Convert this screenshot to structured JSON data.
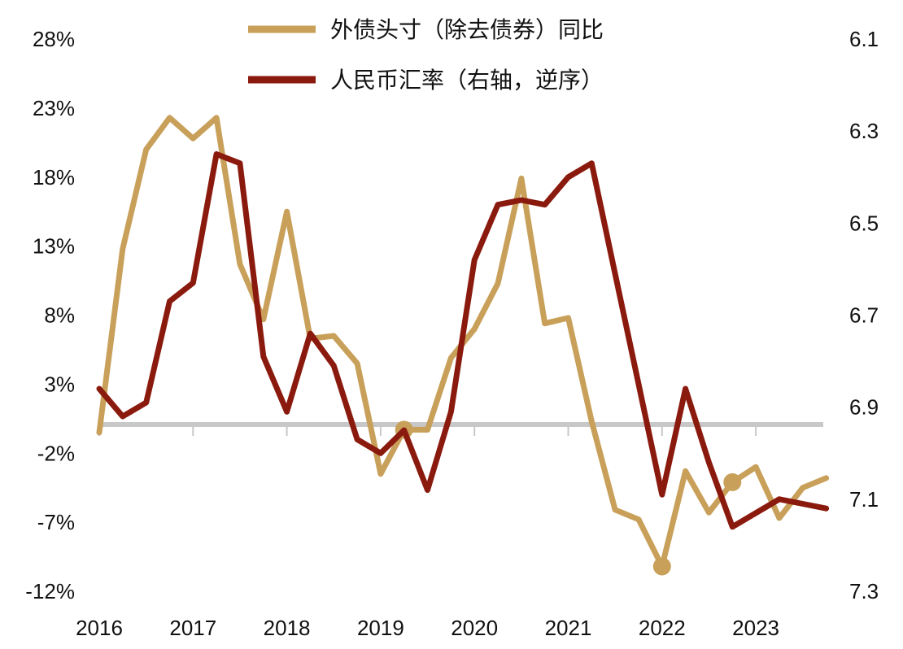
{
  "chart_data": {
    "type": "line",
    "title": "",
    "xlabel": "",
    "ylabel": "",
    "x_ticks": [
      "2016",
      "2017",
      "2018",
      "2019",
      "2020",
      "2021",
      "2022",
      "2023"
    ],
    "y_left": {
      "ticks": [
        "28%",
        "23%",
        "18%",
        "13%",
        "8%",
        "3%",
        "-2%",
        "-7%",
        "-12%"
      ],
      "range": [
        -12,
        28
      ]
    },
    "y_right": {
      "ticks": [
        "6.1",
        "6.3",
        "6.5",
        "6.7",
        "6.9",
        "7.1",
        "7.3"
      ],
      "range": [
        6.1,
        7.3
      ],
      "inverted": true
    },
    "grid": false,
    "legend": {
      "placement": "top-center"
    },
    "series": [
      {
        "name": "外债头寸（除去债券）同比",
        "axis": "left",
        "color": "#C8A05A",
        "x": [
          2016.0,
          2016.25,
          2016.5,
          2016.75,
          2017.0,
          2017.25,
          2017.5,
          2017.75,
          2018.0,
          2018.25,
          2018.5,
          2018.75,
          2019.0,
          2019.25,
          2019.5,
          2019.75,
          2020.0,
          2020.25,
          2020.5,
          2020.75,
          2021.0,
          2021.25,
          2021.5,
          2021.75,
          2022.0,
          2022.25,
          2022.5,
          2022.75,
          2023.0,
          2023.25,
          2023.5,
          2023.75
        ],
        "values": [
          -0.5,
          12.8,
          20.0,
          22.3,
          20.8,
          22.3,
          11.7,
          7.7,
          15.5,
          6.3,
          6.5,
          4.5,
          -3.5,
          -0.3,
          -0.3,
          4.9,
          7.0,
          10.3,
          17.9,
          7.4,
          7.8,
          0.3,
          -6.1,
          -6.8,
          -10.2,
          -3.3,
          -6.3,
          -4.1,
          -3.0,
          -6.7,
          -4.5,
          -3.8
        ],
        "markers_at": [
          2019.25,
          2022.0,
          2022.75
        ]
      },
      {
        "name": "人民币汇率（右轴，逆序）",
        "axis": "right",
        "color": "#8B1A0E",
        "x": [
          2016.0,
          2016.25,
          2016.5,
          2016.75,
          2017.0,
          2017.25,
          2017.5,
          2017.75,
          2018.0,
          2018.25,
          2018.5,
          2018.75,
          2019.0,
          2019.25,
          2019.5,
          2019.75,
          2020.0,
          2020.25,
          2020.5,
          2020.75,
          2021.0,
          2021.25,
          2021.5,
          2021.75,
          2022.0,
          2022.25,
          2022.5,
          2022.75,
          2023.0,
          2023.25,
          2023.5,
          2023.75
        ],
        "values": [
          6.86,
          6.92,
          6.89,
          6.67,
          6.63,
          6.35,
          6.37,
          6.79,
          6.91,
          6.74,
          6.81,
          6.97,
          7.0,
          6.95,
          7.08,
          6.91,
          6.58,
          6.46,
          6.45,
          6.46,
          6.4,
          6.37,
          6.61,
          6.85,
          7.09,
          6.86,
          7.02,
          7.16,
          7.13,
          7.1,
          7.11,
          7.12
        ]
      }
    ]
  }
}
